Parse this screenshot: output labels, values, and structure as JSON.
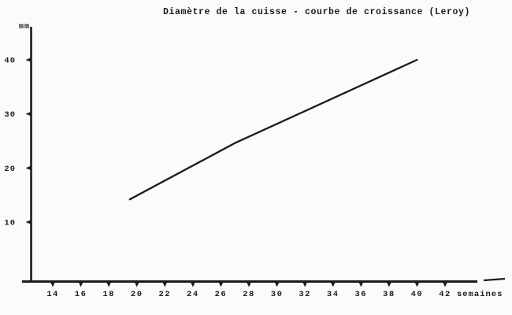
{
  "page": {
    "background_color": "#fbfbf9",
    "ink_color": "#1b1b1b"
  },
  "chart_data": {
    "type": "line",
    "title": "Diamètre de la cuisse - courbe de croissance (Leroy)",
    "xlabel": "semaines",
    "ylabel": "mm",
    "x_ticks": [
      14,
      16,
      18,
      20,
      22,
      24,
      26,
      28,
      30,
      32,
      34,
      36,
      38,
      40,
      42
    ],
    "y_ticks": [
      10,
      20,
      30,
      40
    ],
    "xlim": [
      12.4,
      44.3
    ],
    "ylim": [
      0,
      46
    ],
    "grid": false,
    "legend": false,
    "series": [
      {
        "name": "courbe de croissance (Leroy)",
        "x": [
          19.5,
          27,
          40
        ],
        "y": [
          14.2,
          24.6,
          40
        ]
      }
    ]
  }
}
